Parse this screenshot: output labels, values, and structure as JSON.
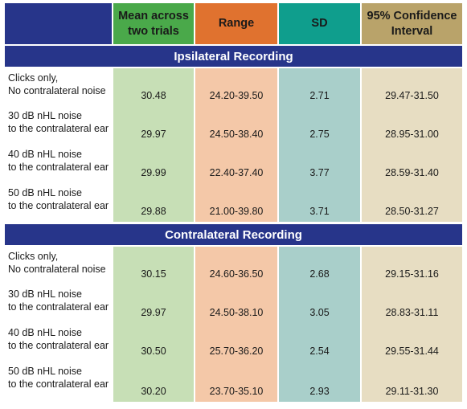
{
  "headers": {
    "mean": "Mean across two trials",
    "range": "Range",
    "sd": "SD",
    "ci": "95% Confidence Interval"
  },
  "sections": [
    {
      "title": "Ipsilateral Recording",
      "rows": [
        {
          "label1": "Clicks only,",
          "label2": "No contralateral noise",
          "mean": "30.48",
          "range": "24.20-39.50",
          "sd": "2.71",
          "ci": "29.47-31.50"
        },
        {
          "label1": "30 dB nHL noise",
          "label2": "to the contralateral ear",
          "mean": "29.97",
          "range": "24.50-38.40",
          "sd": "2.75",
          "ci": "28.95-31.00"
        },
        {
          "label1": "40 dB nHL noise",
          "label2": "to the contralateral ear",
          "mean": "29.99",
          "range": "22.40-37.40",
          "sd": "3.77",
          "ci": "28.59-31.40"
        },
        {
          "label1": "50 dB nHL noise",
          "label2": "to the contralateral ear",
          "mean": "29.88",
          "range": "21.00-39.80",
          "sd": "3.71",
          "ci": "28.50-31.27"
        }
      ]
    },
    {
      "title": "Contralateral Recording",
      "rows": [
        {
          "label1": "Clicks only,",
          "label2": "No contralateral noise",
          "mean": "30.15",
          "range": "24.60-36.50",
          "sd": "2.68",
          "ci": "29.15-31.16"
        },
        {
          "label1": "30 dB nHL noise",
          "label2": "to the contralateral ear",
          "mean": "29.97",
          "range": "24.50-38.10",
          "sd": "3.05",
          "ci": "28.83-31.11"
        },
        {
          "label1": "40 dB nHL noise",
          "label2": "to the contralateral ear",
          "mean": "30.50",
          "range": "25.70-36.20",
          "sd": "2.54",
          "ci": "29.55-31.44"
        },
        {
          "label1": "50 dB nHL noise",
          "label2": "to the contralateral ear",
          "mean": "30.20",
          "range": "23.70-35.10",
          "sd": "2.93",
          "ci": "29.11-31.30"
        }
      ]
    }
  ],
  "colors": {
    "header_blank": "#27358a",
    "mean_header": "#4aa94a",
    "range_header": "#e0722f",
    "sd_header": "#0f9e8d",
    "ci_header": "#b9a36a",
    "mean_cell": "#c7dfb6",
    "range_cell": "#f4c8a8",
    "sd_cell": "#a9cfca",
    "ci_cell": "#e7ddc2"
  }
}
